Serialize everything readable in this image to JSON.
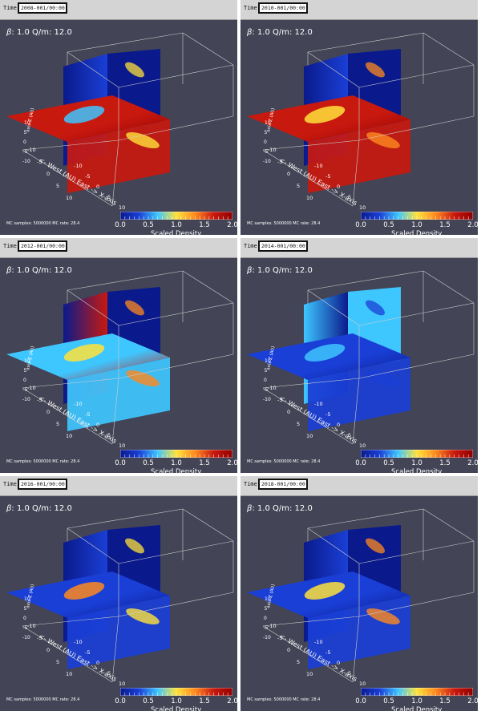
{
  "panels": [
    {
      "time_label": "Time:",
      "time_value": "2008-001/00:00:00",
      "beta_symbol": "β",
      "beta_text": ": 1.0  Q/m: 12.0",
      "mc_text": "MC samples: 5000000  MC rate: 28.4",
      "mode": "red"
    },
    {
      "time_label": "Time:",
      "time_value": "2010-001/00:00:00",
      "beta_symbol": "β",
      "beta_text": ": 1.0  Q/m: 12.0",
      "mc_text": "MC samples: 5000000  MC rate: 28.4",
      "mode": "red2"
    },
    {
      "time_label": "Time:",
      "time_value": "2012-001/00:00:00",
      "beta_symbol": "β",
      "beta_text": ": 1.0  Q/m: 12.0",
      "mc_text": "MC samples: 5000000  MC rate: 28.4",
      "mode": "mixed"
    },
    {
      "time_label": "Time:",
      "time_value": "2014-001/00:00:00",
      "beta_symbol": "β",
      "beta_text": ": 1.0  Q/m: 12.0",
      "mc_text": "MC samples: 5000000  MC rate: 28.4",
      "mode": "blue"
    },
    {
      "time_label": "Time:",
      "time_value": "2016-001/00:00:00",
      "beta_symbol": "β",
      "beta_text": ": 1.0  Q/m: 12.0",
      "mc_text": "MC samples: 5000000  MC rate: 28.4",
      "mode": "deep"
    },
    {
      "time_label": "Time:",
      "time_value": "2018-001/00:00:00",
      "beta_symbol": "β",
      "beta_text": ": 1.0  Q/m: 12.0",
      "mc_text": "MC samples: 5000000  MC rate: 28.4",
      "mode": "rise"
    }
  ],
  "colorbar": {
    "title": "Scaled Density",
    "ticks": [
      "0.0",
      "0.5",
      "1.0",
      "1.5",
      "2.0"
    ],
    "min": 0.0,
    "max": 2.0
  },
  "axes": {
    "x_label": "<- West (AU) East -> X-axis",
    "y_ticks": [
      "-10",
      "-5",
      "0",
      "5",
      "10"
    ],
    "x_ticks": [
      "-10",
      "-5",
      "0",
      "5",
      "10"
    ],
    "z_label": "axis-Z (AU)",
    "z_ticks": [
      "10",
      "5",
      "0",
      "-5",
      "-10"
    ]
  },
  "colors": {
    "background": "#434455",
    "dark_blue": "#0a1a8c",
    "blue": "#1a3fd6",
    "cyan": "#3ec6ff",
    "yellow": "#ffe23a",
    "orange": "#ff8a1f",
    "red": "#c8190f",
    "dark_red": "#8f0000"
  }
}
